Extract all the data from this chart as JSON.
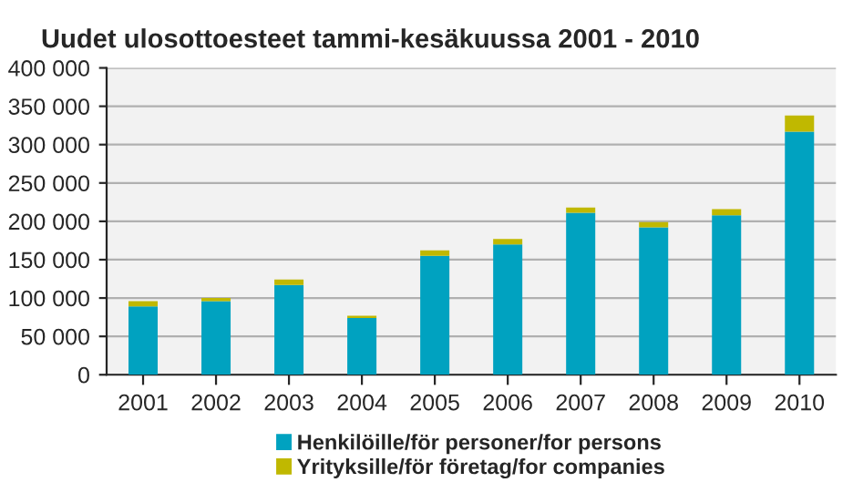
{
  "chart_data": {
    "type": "bar",
    "title": "Uudet ulosottoesteet tammi-kesäkuussa 2001 - 2010",
    "stacked": true,
    "categories": [
      "2001",
      "2002",
      "2003",
      "2004",
      "2005",
      "2006",
      "2007",
      "2008",
      "2009",
      "2010"
    ],
    "series": [
      {
        "name": "Henkilöille/för personer/for persons",
        "color": "#00a2c0",
        "values": [
          89000,
          96000,
          117000,
          74000,
          155000,
          170000,
          211000,
          192000,
          208000,
          317000
        ]
      },
      {
        "name": "Yrityksille/för företag/for companies",
        "color": "#c0b800",
        "values": [
          7000,
          4000,
          7000,
          3000,
          7000,
          7000,
          7000,
          7000,
          8000,
          21000
        ]
      }
    ],
    "ylim": [
      0,
      400000
    ],
    "yticks": [
      {
        "value": 0,
        "label": "0"
      },
      {
        "value": 50000,
        "label": "50 000"
      },
      {
        "value": 100000,
        "label": "100 000"
      },
      {
        "value": 150000,
        "label": "150 000"
      },
      {
        "value": 200000,
        "label": "200 000"
      },
      {
        "value": 250000,
        "label": "250 000"
      },
      {
        "value": 300000,
        "label": "300 000"
      },
      {
        "value": 350000,
        "label": "350 000"
      },
      {
        "value": 400000,
        "label": "400 000"
      }
    ],
    "grid": "y",
    "legend": "bottom"
  }
}
